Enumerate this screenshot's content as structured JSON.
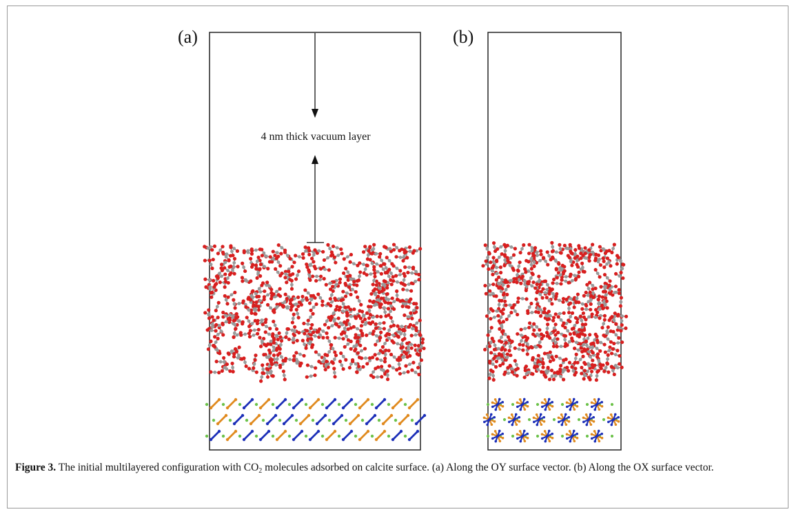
{
  "figure": {
    "panel_a_label": "(a)",
    "panel_b_label": "(b)",
    "vacuum_label": "4 nm thick vacuum layer",
    "colors": {
      "oxygen": "#d81e1e",
      "carbon": "#9a9a9a",
      "calcium": "#6cc24a",
      "carbonate_orange": "#e08a1e",
      "carbonate_blue": "#1c2fb8",
      "box": "#222222"
    }
  },
  "caption": {
    "label": "Figure 3.",
    "text_before_sub": " The initial multilayered configuration with CO",
    "sub": "2",
    "text_after_sub": " molecules adsorbed on calcite surface. (a) Along the OY surface vector. (b) Along the OX surface vector."
  }
}
